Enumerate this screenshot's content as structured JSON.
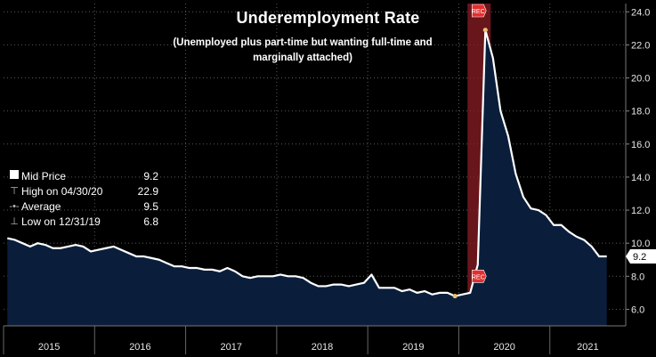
{
  "chart_data": {
    "type": "area",
    "title": "Underemployment Rate",
    "subtitle": "(Unemployed plus part-time but wanting full-time and marginally attached)",
    "ylim": [
      5.0,
      24.5
    ],
    "y_ticks": [
      "6.0",
      "8.0",
      "10.0",
      "12.0",
      "14.0",
      "16.0",
      "18.0",
      "20.0",
      "22.0",
      "24.0"
    ],
    "x_tick_labels": [
      "2015",
      "2016",
      "2017",
      "2018",
      "2019",
      "2020",
      "2021"
    ],
    "series": [
      {
        "name": "Mid Price",
        "color": "#ffffff",
        "fill": "#0a1e3c",
        "x": [
          "2015-01",
          "2015-02",
          "2015-03",
          "2015-04",
          "2015-05",
          "2015-06",
          "2015-07",
          "2015-08",
          "2015-09",
          "2015-10",
          "2015-11",
          "2015-12",
          "2016-01",
          "2016-02",
          "2016-03",
          "2016-04",
          "2016-05",
          "2016-06",
          "2016-07",
          "2016-08",
          "2016-09",
          "2016-10",
          "2016-11",
          "2016-12",
          "2017-01",
          "2017-02",
          "2017-03",
          "2017-04",
          "2017-05",
          "2017-06",
          "2017-07",
          "2017-08",
          "2017-09",
          "2017-10",
          "2017-11",
          "2017-12",
          "2018-01",
          "2018-02",
          "2018-03",
          "2018-04",
          "2018-05",
          "2018-06",
          "2018-07",
          "2018-08",
          "2018-09",
          "2018-10",
          "2018-11",
          "2018-12",
          "2019-01",
          "2019-02",
          "2019-03",
          "2019-04",
          "2019-05",
          "2019-06",
          "2019-07",
          "2019-08",
          "2019-09",
          "2019-10",
          "2019-11",
          "2019-12",
          "2020-01",
          "2020-02",
          "2020-03",
          "2020-04",
          "2020-05",
          "2020-06",
          "2020-07",
          "2020-08",
          "2020-09",
          "2020-10",
          "2020-11",
          "2020-12",
          "2021-01",
          "2021-02",
          "2021-03",
          "2021-04",
          "2021-05",
          "2021-06",
          "2021-07",
          "2021-08"
        ],
        "values": [
          10.3,
          10.2,
          10.0,
          9.8,
          10.0,
          9.9,
          9.7,
          9.7,
          9.8,
          9.9,
          9.8,
          9.5,
          9.6,
          9.7,
          9.8,
          9.6,
          9.4,
          9.2,
          9.2,
          9.1,
          9.0,
          8.8,
          8.6,
          8.6,
          8.5,
          8.5,
          8.4,
          8.4,
          8.3,
          8.5,
          8.3,
          8.0,
          7.9,
          8.0,
          8.0,
          8.0,
          8.1,
          8.0,
          8.0,
          7.9,
          7.6,
          7.4,
          7.4,
          7.5,
          7.5,
          7.4,
          7.5,
          7.6,
          8.1,
          7.3,
          7.3,
          7.3,
          7.1,
          7.2,
          7.0,
          7.1,
          6.9,
          7.0,
          7.0,
          6.8,
          6.9,
          7.0,
          8.7,
          22.9,
          21.2,
          18.0,
          16.5,
          14.2,
          12.8,
          12.1,
          12.0,
          11.7,
          11.1,
          11.1,
          10.7,
          10.4,
          10.2,
          9.8,
          9.2,
          9.2
        ]
      }
    ],
    "recession_shading": {
      "from": "2020-02",
      "to": "2020-04",
      "label": "REC",
      "color": "#8b1d24"
    },
    "markers": [
      {
        "label": "High on 04/30/20",
        "x": "2020-04",
        "value": 22.9
      },
      {
        "label": "Low on 12/31/19",
        "x": "2019-12",
        "value": 6.8
      }
    ],
    "last_value_label": "9.2",
    "legend": {
      "placement": "left",
      "items": [
        {
          "label": "Mid Price",
          "value": "9.2",
          "symbol": "box"
        },
        {
          "label": "High on 04/30/20",
          "value": "22.9",
          "symbol": "⊤"
        },
        {
          "label": "Average",
          "value": "9.5",
          "symbol": "-•-"
        },
        {
          "label": "Low on 12/31/19",
          "value": "6.8",
          "symbol": "⊥"
        }
      ]
    },
    "grid": true
  }
}
